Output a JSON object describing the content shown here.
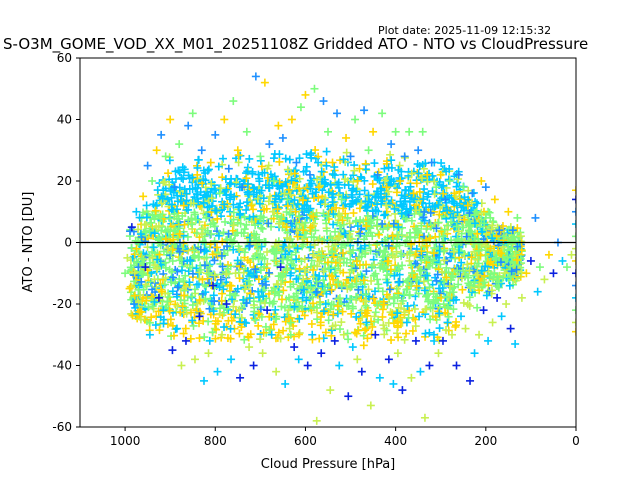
{
  "plot_date": "Plot date: 2025-11-09 12:15:32",
  "chart_data": {
    "type": "scatter",
    "title": "S-O3M_GOME_VOD_XX_M01_20251108Z Gridded ATO - NTO vs CloudPressure",
    "xlabel": "Cloud Pressure [hPa]",
    "ylabel": "ATO - NTO [DU]",
    "xlim": [
      1100,
      0
    ],
    "ylim": [
      -60,
      60
    ],
    "x_inverted": true,
    "x_ticks": [
      1000,
      800,
      600,
      400,
      200,
      0
    ],
    "y_ticks": [
      -60,
      -40,
      -20,
      0,
      20,
      40,
      60
    ],
    "reference_line_y": 0,
    "marker": "plus",
    "colors": [
      "#0a20e0",
      "#1e90ff",
      "#00c8ff",
      "#7dfc7d",
      "#c8f050",
      "#ffd700"
    ],
    "series": [
      {
        "values_description_free": true,
        "points": [
          [
            1000,
            -10
          ],
          [
            995,
            -5
          ],
          [
            990,
            -15
          ],
          [
            985,
            5
          ],
          [
            980,
            -20
          ],
          [
            975,
            10
          ],
          [
            970,
            0
          ],
          [
            965,
            -25
          ],
          [
            960,
            15
          ],
          [
            955,
            -8
          ],
          [
            950,
            25
          ],
          [
            945,
            -30
          ],
          [
            940,
            20
          ],
          [
            935,
            -12
          ],
          [
            930,
            30
          ],
          [
            925,
            -18
          ],
          [
            920,
            35
          ],
          [
            915,
            -22
          ],
          [
            910,
            28
          ],
          [
            905,
            -2
          ],
          [
            900,
            40
          ],
          [
            895,
            -35
          ],
          [
            890,
            18
          ],
          [
            885,
            -28
          ],
          [
            880,
            32
          ],
          [
            875,
            -40
          ],
          [
            870,
            12
          ],
          [
            865,
            -32
          ],
          [
            860,
            38
          ],
          [
            855,
            -6
          ],
          [
            850,
            42
          ],
          [
            845,
            -38
          ],
          [
            840,
            22
          ],
          [
            835,
            -24
          ],
          [
            830,
            30
          ],
          [
            825,
            -45
          ],
          [
            820,
            8
          ],
          [
            815,
            -36
          ],
          [
            810,
            26
          ],
          [
            805,
            -14
          ],
          [
            800,
            35
          ],
          [
            795,
            -42
          ],
          [
            790,
            16
          ],
          [
            785,
            -30
          ],
          [
            780,
            40
          ],
          [
            775,
            -20
          ],
          [
            770,
            24
          ],
          [
            765,
            -38
          ],
          [
            760,
            46
          ],
          [
            755,
            -10
          ],
          [
            750,
            30
          ],
          [
            745,
            -44
          ],
          [
            740,
            18
          ],
          [
            735,
            -26
          ],
          [
            730,
            36
          ],
          [
            725,
            -34
          ],
          [
            720,
            12
          ],
          [
            715,
            -40
          ],
          [
            710,
            54
          ],
          [
            705,
            -16
          ],
          [
            700,
            28
          ],
          [
            695,
            -36
          ],
          [
            690,
            52
          ],
          [
            685,
            -22
          ],
          [
            680,
            32
          ],
          [
            675,
            -30
          ],
          [
            670,
            20
          ],
          [
            665,
            -42
          ],
          [
            660,
            38
          ],
          [
            655,
            -8
          ],
          [
            650,
            34
          ],
          [
            645,
            -46
          ],
          [
            640,
            14
          ],
          [
            635,
            -28
          ],
          [
            630,
            40
          ],
          [
            625,
            -34
          ],
          [
            620,
            26
          ],
          [
            615,
            -38
          ],
          [
            610,
            44
          ],
          [
            605,
            -12
          ],
          [
            600,
            48
          ],
          [
            595,
            -40
          ],
          [
            590,
            22
          ],
          [
            585,
            -30
          ],
          [
            580,
            50
          ],
          [
            575,
            -58
          ],
          [
            570,
            18
          ],
          [
            565,
            -36
          ],
          [
            560,
            46
          ],
          [
            555,
            -20
          ],
          [
            550,
            36
          ],
          [
            545,
            -48
          ],
          [
            540,
            26
          ],
          [
            535,
            -32
          ],
          [
            530,
            42
          ],
          [
            525,
            -40
          ],
          [
            520,
            14
          ],
          [
            515,
            -30
          ],
          [
            510,
            34
          ],
          [
            505,
            -50
          ],
          [
            500,
            28
          ],
          [
            495,
            -34
          ],
          [
            490,
            40
          ],
          [
            485,
            -38
          ],
          [
            480,
            24
          ],
          [
            475,
            -42
          ],
          [
            470,
            43
          ],
          [
            465,
            -26
          ],
          [
            460,
            30
          ],
          [
            455,
            -53
          ],
          [
            450,
            36
          ],
          [
            445,
            -30
          ],
          [
            440,
            22
          ],
          [
            435,
            -44
          ],
          [
            430,
            42
          ],
          [
            425,
            -28
          ],
          [
            420,
            18
          ],
          [
            415,
            -38
          ],
          [
            410,
            32
          ],
          [
            405,
            -46
          ],
          [
            400,
            36
          ],
          [
            395,
            -36
          ],
          [
            390,
            20
          ],
          [
            385,
            -48
          ],
          [
            380,
            28
          ],
          [
            375,
            -26
          ],
          [
            370,
            36
          ],
          [
            365,
            -44
          ],
          [
            360,
            16
          ],
          [
            355,
            -32
          ],
          [
            350,
            30
          ],
          [
            345,
            -42
          ],
          [
            340,
            36
          ],
          [
            335,
            -57
          ],
          [
            330,
            22
          ],
          [
            325,
            -40
          ],
          [
            320,
            26
          ],
          [
            315,
            -30
          ],
          [
            310,
            18
          ],
          [
            305,
            -36
          ],
          [
            300,
            22
          ],
          [
            295,
            -32
          ],
          [
            290,
            14
          ],
          [
            285,
            -26
          ],
          [
            280,
            20
          ],
          [
            275,
            -30
          ],
          [
            270,
            16
          ],
          [
            265,
            -40
          ],
          [
            260,
            22
          ],
          [
            255,
            -24
          ],
          [
            250,
            18
          ],
          [
            245,
            -28
          ],
          [
            240,
            12
          ],
          [
            235,
            -45
          ],
          [
            230,
            16
          ],
          [
            225,
            -36
          ],
          [
            220,
            10
          ],
          [
            215,
            -30
          ],
          [
            210,
            20
          ],
          [
            205,
            -22
          ],
          [
            200,
            18
          ],
          [
            195,
            -32
          ],
          [
            190,
            8
          ],
          [
            185,
            -26
          ],
          [
            180,
            14
          ],
          [
            175,
            -18
          ],
          [
            170,
            4
          ],
          [
            165,
            -24
          ],
          [
            160,
            2
          ],
          [
            155,
            -20
          ],
          [
            150,
            10
          ],
          [
            145,
            -28
          ],
          [
            140,
            4
          ],
          [
            135,
            -33
          ],
          [
            130,
            8
          ],
          [
            120,
            -18
          ],
          [
            110,
            -10
          ],
          [
            100,
            -6
          ],
          [
            90,
            8
          ],
          [
            85,
            -16
          ],
          [
            80,
            -8
          ],
          [
            70,
            -12
          ],
          [
            60,
            -4
          ],
          [
            50,
            -10
          ],
          [
            40,
            0
          ],
          [
            30,
            -6
          ],
          [
            20,
            -8
          ],
          [
            10,
            -4
          ],
          [
            0,
            17
          ],
          [
            0,
            14
          ],
          [
            0,
            10
          ],
          [
            0,
            6
          ],
          [
            0,
            2
          ],
          [
            0,
            -2
          ],
          [
            0,
            -6
          ],
          [
            0,
            -10
          ],
          [
            0,
            -14
          ],
          [
            0,
            -18
          ],
          [
            0,
            -22
          ],
          [
            0,
            -26
          ],
          [
            0,
            -29
          ]
        ]
      }
    ]
  }
}
